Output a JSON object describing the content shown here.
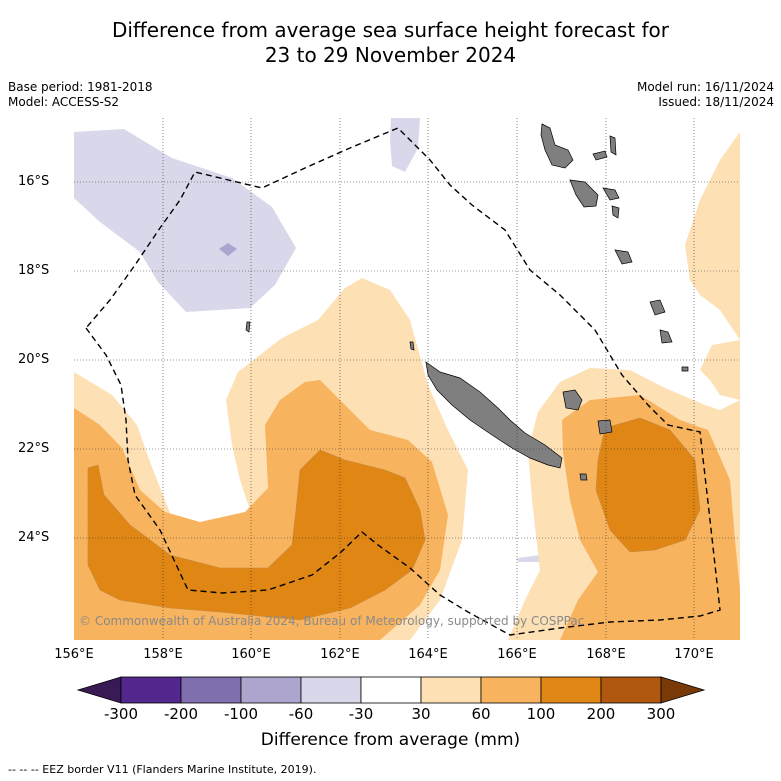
{
  "header": {
    "title_line1": "Difference from average sea surface height forecast for",
    "title_line2": "23 to 29 November 2024",
    "base_period": "Base period: 1981-2018",
    "model": "Model: ACCESS-S2",
    "model_run": "Model run: 16/11/2024",
    "issued": "Issued: 18/11/2024"
  },
  "map": {
    "latitude_labels": [
      "16°S",
      "18°S",
      "20°S",
      "22°S",
      "24°S"
    ],
    "longitude_labels": [
      "156°E",
      "158°E",
      "160°E",
      "162°E",
      "164°E",
      "166°E",
      "168°E",
      "170°E"
    ],
    "copyright": "© Commonwealth of Australia 2024, Bureau of Meteorology, supported by COSPPac"
  },
  "colorbar": {
    "ticks": [
      "-300",
      "-200",
      "-100",
      "-60",
      "-30",
      "30",
      "60",
      "100",
      "200",
      "300"
    ],
    "colors": [
      "#3a1a55",
      "#54278f",
      "#7f6faf",
      "#ada5cd",
      "#d8d8ea",
      "#ffffff",
      "#fde0b4",
      "#f8b35e",
      "#e08615",
      "#b05810",
      "#7a3a08"
    ],
    "label": "Difference from average (mm)"
  },
  "footnote": "-- -- -- EEZ border V11 (Flanders Marine Institute, 2019)."
}
